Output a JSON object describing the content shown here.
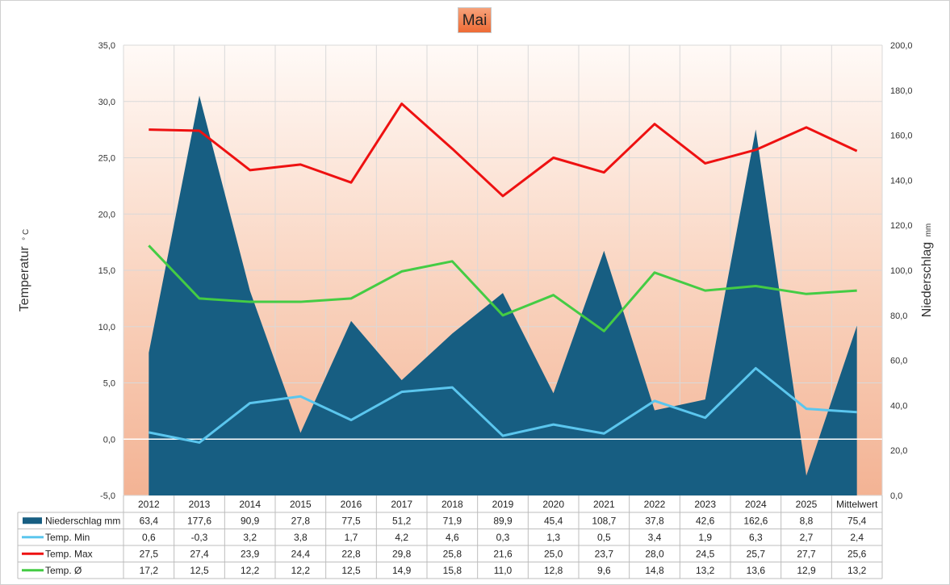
{
  "chart_data": {
    "type": "area+line",
    "title": "Mai",
    "categories": [
      "2012",
      "2013",
      "2014",
      "2015",
      "2016",
      "2017",
      "2018",
      "2019",
      "2020",
      "2021",
      "2022",
      "2023",
      "2024",
      "2025",
      "Mittelwert"
    ],
    "ylabel_left": "Temperatur",
    "ylabel_left_unit": "° C",
    "ylabel_right": "Niederschlag",
    "ylabel_right_unit": "mm",
    "ylim_left": [
      -5,
      35
    ],
    "yticks_left": [
      "-5,0",
      "0,0",
      "5,0",
      "10,0",
      "15,0",
      "20,0",
      "25,0",
      "30,0",
      "35,0"
    ],
    "ylim_right": [
      0,
      200
    ],
    "yticks_right": [
      "0,0",
      "20,0",
      "40,0",
      "60,0",
      "80,0",
      "100,0",
      "120,0",
      "140,0",
      "160,0",
      "180,0",
      "200,0"
    ],
    "grid": true,
    "legend": "data-table",
    "series": [
      {
        "name": "Niederschlag mm",
        "type": "area",
        "axis": "right",
        "color": "#175e82",
        "values": [
          63.4,
          177.6,
          90.9,
          27.8,
          77.5,
          51.2,
          71.9,
          89.9,
          45.4,
          108.7,
          37.8,
          42.6,
          162.6,
          8.8,
          75.4
        ],
        "labels": [
          "63,4",
          "177,6",
          "90,9",
          "27,8",
          "77,5",
          "51,2",
          "71,9",
          "89,9",
          "45,4",
          "108,7",
          "37,8",
          "42,6",
          "162,6",
          "8,8",
          "75,4"
        ]
      },
      {
        "name": "Temp. Min",
        "type": "line",
        "axis": "left",
        "color": "#5bc6ee",
        "values": [
          0.6,
          -0.3,
          3.2,
          3.8,
          1.7,
          4.2,
          4.6,
          0.3,
          1.3,
          0.5,
          3.4,
          1.9,
          6.3,
          2.7,
          2.4
        ],
        "labels": [
          "0,6",
          "-0,3",
          "3,2",
          "3,8",
          "1,7",
          "4,2",
          "4,6",
          "0,3",
          "1,3",
          "0,5",
          "3,4",
          "1,9",
          "6,3",
          "2,7",
          "2,4"
        ]
      },
      {
        "name": "Temp. Max",
        "type": "line",
        "axis": "left",
        "color": "#ee1111",
        "values": [
          27.5,
          27.4,
          23.9,
          24.4,
          22.8,
          29.8,
          25.8,
          21.6,
          25.0,
          23.7,
          28.0,
          24.5,
          25.7,
          27.7,
          25.6
        ],
        "labels": [
          "27,5",
          "27,4",
          "23,9",
          "24,4",
          "22,8",
          "29,8",
          "25,8",
          "21,6",
          "25,0",
          "23,7",
          "28,0",
          "24,5",
          "25,7",
          "27,7",
          "25,6"
        ]
      },
      {
        "name": "Temp. Ø",
        "type": "line",
        "axis": "left",
        "color": "#44cc44",
        "values": [
          17.2,
          12.5,
          12.2,
          12.2,
          12.5,
          14.9,
          15.8,
          11.0,
          12.8,
          9.6,
          14.8,
          13.2,
          13.6,
          12.9,
          13.2
        ],
        "labels": [
          "17,2",
          "12,5",
          "12,2",
          "12,2",
          "12,5",
          "14,9",
          "15,8",
          "11,0",
          "12,8",
          "9,6",
          "14,8",
          "13,2",
          "13,6",
          "12,9",
          "13,2"
        ]
      }
    ]
  }
}
